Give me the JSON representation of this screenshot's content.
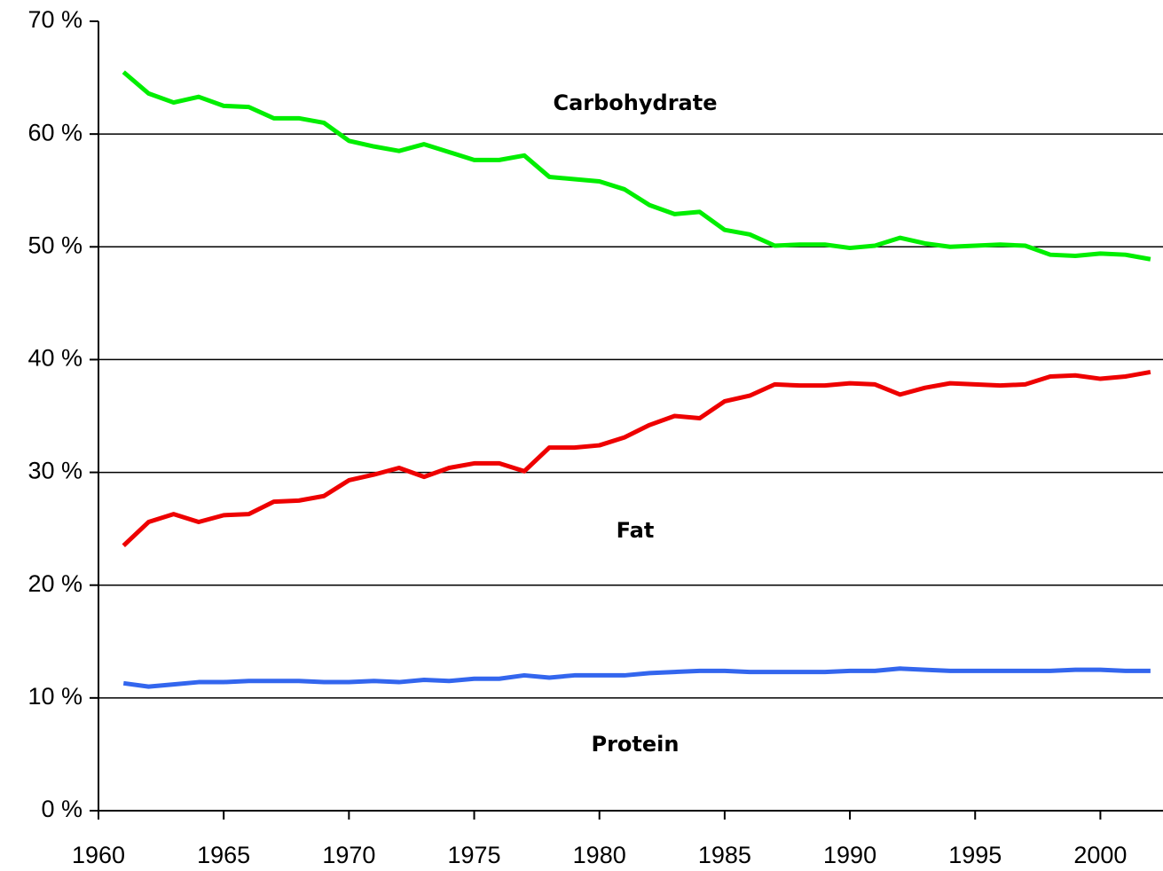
{
  "chart_data": {
    "type": "line",
    "x": [
      1961,
      1962,
      1963,
      1964,
      1965,
      1966,
      1967,
      1968,
      1969,
      1970,
      1971,
      1972,
      1973,
      1974,
      1975,
      1976,
      1977,
      1978,
      1979,
      1980,
      1981,
      1982,
      1983,
      1984,
      1985,
      1986,
      1987,
      1988,
      1989,
      1990,
      1991,
      1992,
      1993,
      1994,
      1995,
      1996,
      1997,
      1998,
      1999,
      2000,
      2001,
      2002
    ],
    "series": [
      {
        "name": "Carbohydrate",
        "color": "#00ee00",
        "values": [
          65.5,
          63.6,
          62.8,
          63.3,
          62.5,
          62.4,
          61.4,
          61.4,
          61.0,
          59.4,
          58.9,
          58.5,
          59.1,
          58.4,
          57.7,
          57.7,
          58.1,
          56.2,
          56.0,
          55.8,
          55.1,
          53.7,
          52.9,
          53.1,
          51.5,
          51.1,
          50.1,
          50.2,
          50.2,
          49.9,
          50.1,
          50.8,
          50.3,
          50.0,
          50.1,
          50.2,
          50.1,
          49.3,
          49.2,
          49.4,
          49.3,
          48.9
        ]
      },
      {
        "name": "Fat",
        "color": "#ee0000",
        "values": [
          23.5,
          25.6,
          26.3,
          25.6,
          26.2,
          26.3,
          27.4,
          27.5,
          27.9,
          29.3,
          29.8,
          30.4,
          29.6,
          30.4,
          30.8,
          30.8,
          30.1,
          32.2,
          32.2,
          32.4,
          33.1,
          34.2,
          35.0,
          34.8,
          36.3,
          36.8,
          37.8,
          37.7,
          37.7,
          37.9,
          37.8,
          36.9,
          37.5,
          37.9,
          37.8,
          37.7,
          37.8,
          38.5,
          38.6,
          38.3,
          38.5,
          38.9
        ]
      },
      {
        "name": "Protein",
        "color": "#3366ee",
        "values": [
          11.3,
          11.0,
          11.2,
          11.4,
          11.4,
          11.5,
          11.5,
          11.5,
          11.4,
          11.4,
          11.5,
          11.4,
          11.6,
          11.5,
          11.7,
          11.7,
          12.0,
          11.8,
          12.0,
          12.0,
          12.0,
          12.2,
          12.3,
          12.4,
          12.4,
          12.3,
          12.3,
          12.3,
          12.3,
          12.4,
          12.4,
          12.6,
          12.5,
          12.4,
          12.4,
          12.4,
          12.4,
          12.4,
          12.5,
          12.5,
          12.4,
          12.4
        ]
      }
    ],
    "xlim": [
      1960,
      2002.5
    ],
    "xticks": [
      1960,
      1965,
      1970,
      1975,
      1980,
      1985,
      1990,
      1995,
      2000
    ],
    "ylim": [
      0,
      70
    ],
    "yticks": [
      {
        "value": 0,
        "label": "0 %"
      },
      {
        "value": 10,
        "label": "10 %"
      },
      {
        "value": 20,
        "label": "20 %"
      },
      {
        "value": 30,
        "label": "30 %"
      },
      {
        "value": 40,
        "label": "40 %"
      },
      {
        "value": 50,
        "label": "50 %"
      },
      {
        "value": 60,
        "label": "60 %"
      },
      {
        "value": 70,
        "label": "70 %"
      }
    ],
    "grid": true
  }
}
